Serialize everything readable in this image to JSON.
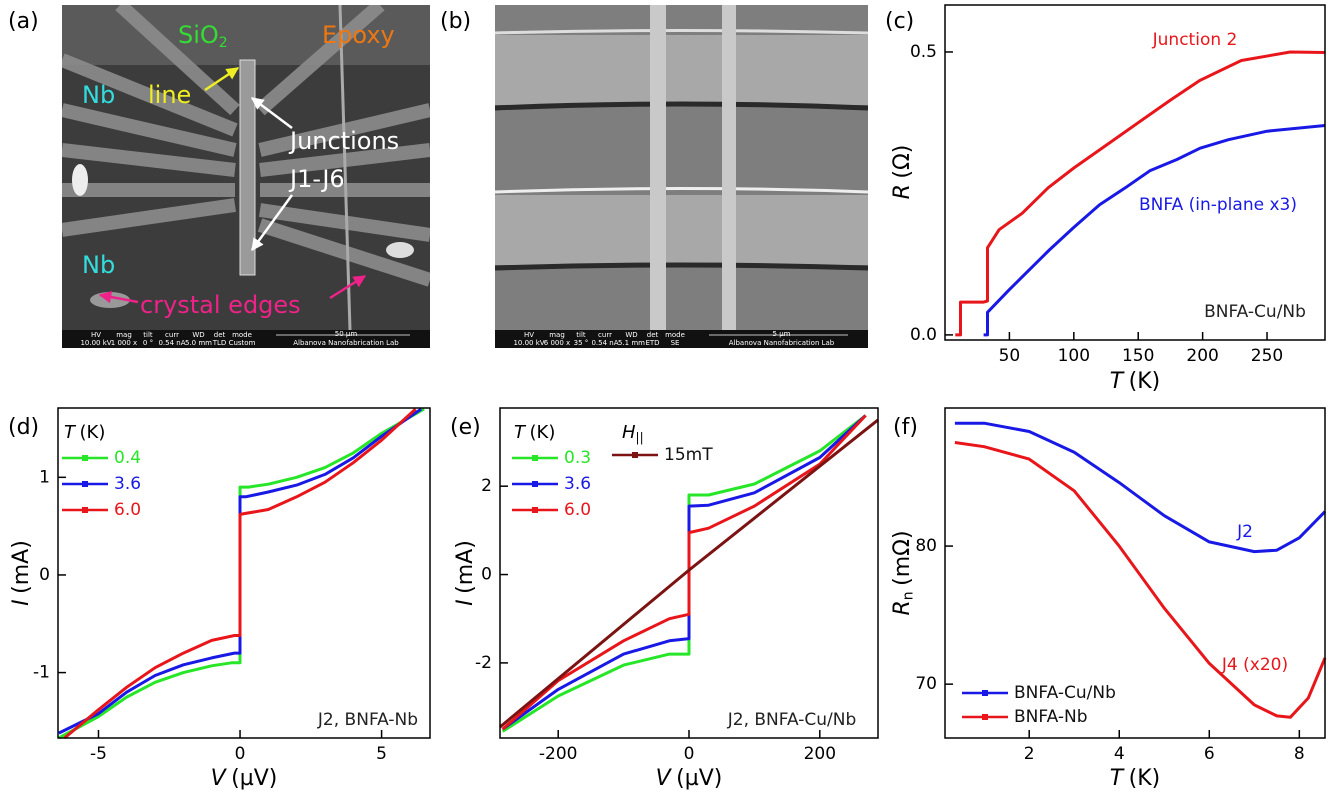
{
  "images": [
    {
      "panel_label": "(a)",
      "annotations": [
        {
          "text": "SiO",
          "sub": "2"
        },
        {
          "text": "Epoxy"
        },
        {
          "text": "Nb"
        },
        {
          "text": "line"
        },
        {
          "text": "Junctions"
        },
        {
          "text": "J1-J6"
        },
        {
          "text": "Nb"
        },
        {
          "text": "crystal edges"
        }
      ],
      "info_bar": [
        {
          "label": "HV",
          "value": "10.00 kV"
        },
        {
          "label": "mag",
          "value": "1 000 x"
        },
        {
          "label": "tilt",
          "value": "0 °"
        },
        {
          "label": "curr",
          "value": "0.54 nA"
        },
        {
          "label": "WD",
          "value": "5.0 mm"
        },
        {
          "label": "det",
          "value": "TLD"
        },
        {
          "label": "mode",
          "value": "Custom"
        }
      ],
      "scale_bar": "50 µm",
      "lab": "Albanova Nanofabrication Lab"
    },
    {
      "panel_label": "(b)",
      "info_bar": [
        {
          "label": "HV",
          "value": "10.00 kV"
        },
        {
          "label": "mag",
          "value": "6 000 x"
        },
        {
          "label": "tilt",
          "value": "35 °"
        },
        {
          "label": "curr",
          "value": "0.54 nA"
        },
        {
          "label": "WD",
          "value": "5.1 mm"
        },
        {
          "label": "det",
          "value": "ETD"
        },
        {
          "label": "mode",
          "value": "SE"
        }
      ],
      "scale_bar": "5 µm",
      "lab": "Albanova Nanofabrication Lab"
    }
  ],
  "chart_data": [
    {
      "type": "line",
      "panel_label": "(c)",
      "xlabel": {
        "symbol": "T",
        "unit": "(K)"
      },
      "ylabel": {
        "symbol": "R",
        "unit": "(Ω)"
      },
      "xlim": [
        0,
        295
      ],
      "ylim": [
        -0.009,
        0.583
      ],
      "xticks": [
        50,
        100,
        150,
        200,
        250
      ],
      "yticks": [
        {
          "value": 0,
          "label": "0.0"
        },
        0.5
      ],
      "series": [
        {
          "color": "#e8161b",
          "x": [
            8,
            12,
            12,
            30,
            33,
            33,
            42,
            60,
            80,
            100,
            120,
            150,
            175,
            198,
            230,
            268,
            295
          ],
          "values": [
            0,
            0,
            0.058,
            0.058,
            0.06,
            0.154,
            0.186,
            0.215,
            0.26,
            0.295,
            0.327,
            0.375,
            0.415,
            0.45,
            0.485,
            0.5,
            0.499
          ]
        },
        {
          "color": "#1919e6",
          "x": [
            30,
            33,
            33,
            50,
            81,
            100,
            120,
            140,
            159,
            180,
            198,
            220,
            250,
            295
          ],
          "values": [
            0,
            0,
            0.04,
            0.08,
            0.15,
            0.19,
            0.23,
            0.26,
            0.29,
            0.31,
            0.33,
            0.345,
            0.36,
            0.37
          ]
        }
      ],
      "annotations": [
        {
          "text": "Junction 2",
          "color": "#e8161b"
        },
        {
          "text": "BNFA (in-plane x3)",
          "color": "#1919e6"
        },
        {
          "text": "BNFA-Cu/Nb",
          "color": "#222222"
        }
      ]
    },
    {
      "type": "line",
      "panel_label": "(d)",
      "xlabel": {
        "symbol": "V",
        "unit": "(µV)"
      },
      "ylabel": {
        "symbol": "I",
        "unit": "(mA)"
      },
      "xlim": [
        -6.43,
        6.71
      ],
      "ylim": [
        -1.67,
        1.71
      ],
      "xticks": [
        -5,
        0,
        5
      ],
      "yticks": [
        -1,
        0,
        1
      ],
      "legend": {
        "titles": [
          {
            "symbol": "T",
            "unit": "(K)"
          }
        ]
      },
      "series": [
        {
          "name": "0.4",
          "color": "#27e627",
          "x": [
            -6.4,
            -5,
            -4,
            -3,
            -2,
            -1,
            -0.3,
            0,
            0,
            0.3,
            1,
            2,
            3,
            4,
            5,
            6.5
          ],
          "values": [
            -1.67,
            -1.45,
            -1.25,
            -1.1,
            -1.0,
            -0.93,
            -0.9,
            -0.9,
            0.9,
            0.9,
            0.93,
            1.0,
            1.1,
            1.25,
            1.45,
            1.7
          ]
        },
        {
          "name": "3.6",
          "color": "#1919e6",
          "x": [
            -6.4,
            -5,
            -4,
            -3,
            -2,
            -1,
            -0.2,
            0,
            0,
            0.2,
            1,
            2,
            3,
            4,
            5,
            6.4
          ],
          "values": [
            -1.62,
            -1.42,
            -1.2,
            -1.03,
            -0.92,
            -0.85,
            -0.8,
            -0.8,
            0.8,
            0.8,
            0.85,
            0.92,
            1.03,
            1.2,
            1.42,
            1.7
          ]
        },
        {
          "name": "6.0",
          "color": "#e8161b",
          "x": [
            -6.2,
            -5,
            -4,
            -3,
            -2,
            -1,
            -0.2,
            0,
            0,
            0.2,
            1,
            2,
            3,
            4,
            5,
            6.2
          ],
          "values": [
            -1.67,
            -1.38,
            -1.15,
            -0.95,
            -0.8,
            -0.67,
            -0.62,
            -0.62,
            0.62,
            0.63,
            0.67,
            0.8,
            0.95,
            1.15,
            1.38,
            1.7
          ]
        }
      ],
      "annotations": [
        {
          "text": "J2, BNFA-Nb",
          "color": "#222222"
        }
      ]
    },
    {
      "type": "line",
      "panel_label": "(e)",
      "xlabel": {
        "symbol": "V",
        "unit": "(µV)"
      },
      "ylabel": {
        "symbol": "I",
        "unit": "(mA)"
      },
      "xlim": [
        -289,
        289
      ],
      "ylim": [
        -3.7,
        3.77
      ],
      "xticks": [
        -200,
        0,
        200
      ],
      "yticks": [
        -2,
        0,
        2
      ],
      "legend": {
        "titles": [
          {
            "symbol": "T",
            "unit": "(K)"
          },
          {
            "symbol": "H",
            "sub": "||"
          }
        ]
      },
      "series": [
        {
          "name": "0.3",
          "color": "#27e627",
          "x": [
            -285,
            -200,
            -100,
            -30,
            0,
            0,
            30,
            100,
            200,
            270
          ],
          "values": [
            -3.55,
            -2.75,
            -2.05,
            -1.8,
            -1.8,
            1.8,
            1.8,
            2.05,
            2.8,
            3.6
          ]
        },
        {
          "name": "3.6",
          "color": "#1919e6",
          "x": [
            -285,
            -200,
            -100,
            -30,
            0,
            0,
            30,
            100,
            200,
            270
          ],
          "values": [
            -3.5,
            -2.6,
            -1.8,
            -1.5,
            -1.45,
            1.55,
            1.57,
            1.85,
            2.65,
            3.6
          ]
        },
        {
          "name": "6.0",
          "color": "#e8161b",
          "x": [
            -285,
            -200,
            -100,
            -30,
            0,
            0,
            30,
            100,
            200,
            270
          ],
          "values": [
            -3.5,
            -2.4,
            -1.5,
            -1.0,
            -0.9,
            0.95,
            1.05,
            1.55,
            2.5,
            3.6
          ]
        },
        {
          "name": "15mT",
          "color": "#7b1313",
          "x": [
            -289,
            0,
            289
          ],
          "values": [
            -3.45,
            0.1,
            3.5
          ]
        }
      ],
      "annotations": [
        {
          "text": "J2, BNFA-Cu/Nb",
          "color": "#222222"
        }
      ]
    },
    {
      "type": "line",
      "panel_label": "(f)",
      "xlabel": {
        "symbol": "T",
        "unit": "(K)"
      },
      "ylabel": {
        "symbol": "R",
        "sub": "n",
        "unit": "(mΩ)"
      },
      "xlim": [
        0.13,
        8.57
      ],
      "ylim": [
        66.1,
        90
      ],
      "xticks": [
        2,
        4,
        6,
        8
      ],
      "yticks": [
        70,
        80
      ],
      "legend": {
        "position": "lower left"
      },
      "series": [
        {
          "name": "BNFA-Cu/Nb",
          "color": "#1919e6",
          "x": [
            0.35,
            1,
            2,
            3,
            4,
            5,
            6,
            7,
            7.5,
            8,
            8.57
          ],
          "values": [
            88.9,
            88.9,
            88.3,
            86.8,
            84.6,
            82.2,
            80.3,
            79.6,
            79.7,
            80.6,
            82.5
          ]
        },
        {
          "name": "BNFA-Nb",
          "color": "#e8161b",
          "x": [
            0.35,
            1,
            2,
            3,
            4,
            5,
            6,
            7,
            7.5,
            7.8,
            8.2,
            8.57
          ],
          "values": [
            87.5,
            87.2,
            86.3,
            84.0,
            80.0,
            75.5,
            71.5,
            68.5,
            67.7,
            67.6,
            69.0,
            71.9
          ]
        }
      ],
      "annotations": [
        {
          "text": "J2",
          "color": "#1919e6"
        },
        {
          "text": "J4 (x20)",
          "color": "#e8161b"
        }
      ]
    }
  ]
}
